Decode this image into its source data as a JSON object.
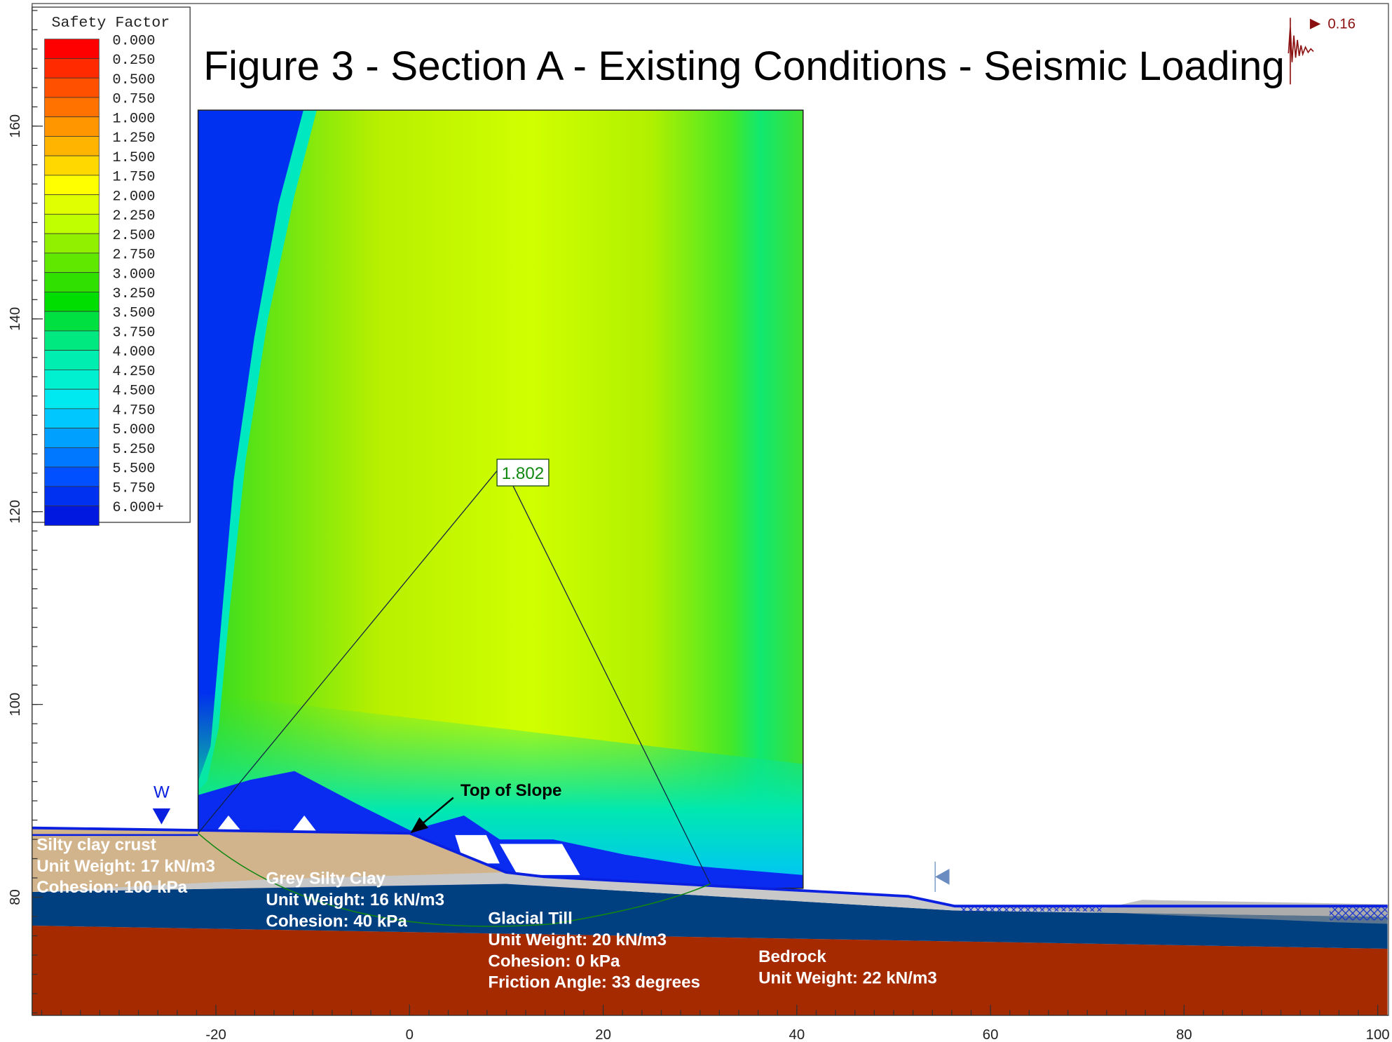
{
  "title": "Figure 3 - Section A - Existing Conditions - Seismic Loading",
  "legend": {
    "title": "Safety Factor",
    "labels": [
      "0.000",
      "0.250",
      "0.500",
      "0.750",
      "1.000",
      "1.250",
      "1.500",
      "1.750",
      "2.000",
      "2.250",
      "2.500",
      "2.750",
      "3.000",
      "3.250",
      "3.500",
      "3.750",
      "4.000",
      "4.250",
      "4.500",
      "4.750",
      "5.000",
      "5.250",
      "5.500",
      "5.750",
      "6.000+"
    ],
    "colors": [
      "#ff0000",
      "#ff2a00",
      "#ff5000",
      "#ff7200",
      "#ff9600",
      "#ffb400",
      "#ffd800",
      "#ffff00",
      "#e0ff00",
      "#c0ff00",
      "#90f000",
      "#60e800",
      "#30e000",
      "#00dd00",
      "#00e040",
      "#00e880",
      "#00eeb0",
      "#00f0d0",
      "#00e8f0",
      "#00c8ff",
      "#00a0ff",
      "#0078ff",
      "#0050ff",
      "#0030f0",
      "#0018e0"
    ]
  },
  "axes": {
    "xticks": [
      -20,
      0,
      20,
      40,
      60,
      80,
      100
    ],
    "yticks": [
      80,
      100,
      120,
      140,
      160
    ]
  },
  "annotations": {
    "min_safety_factor": "1.802",
    "top_of_slope": "Top of Slope",
    "water_table": "W",
    "seismic_coefficient": "0.16"
  },
  "materials": [
    {
      "lines": [
        "Silty clay crust",
        "Unit Weight: 17 kN/m3",
        "Cohesion: 100 kPa"
      ]
    },
    {
      "lines": [
        "Grey Silty Clay",
        "Unit Weight: 16 kN/m3",
        "Cohesion: 40 kPa"
      ]
    },
    {
      "lines": [
        "Glacial Till",
        "Unit Weight: 20 kN/m3",
        "Cohesion: 0 kPa",
        "Friction Angle: 33 degrees"
      ]
    },
    {
      "lines": [
        "Bedrock",
        "Unit Weight: 22 kN/m3"
      ]
    }
  ]
}
